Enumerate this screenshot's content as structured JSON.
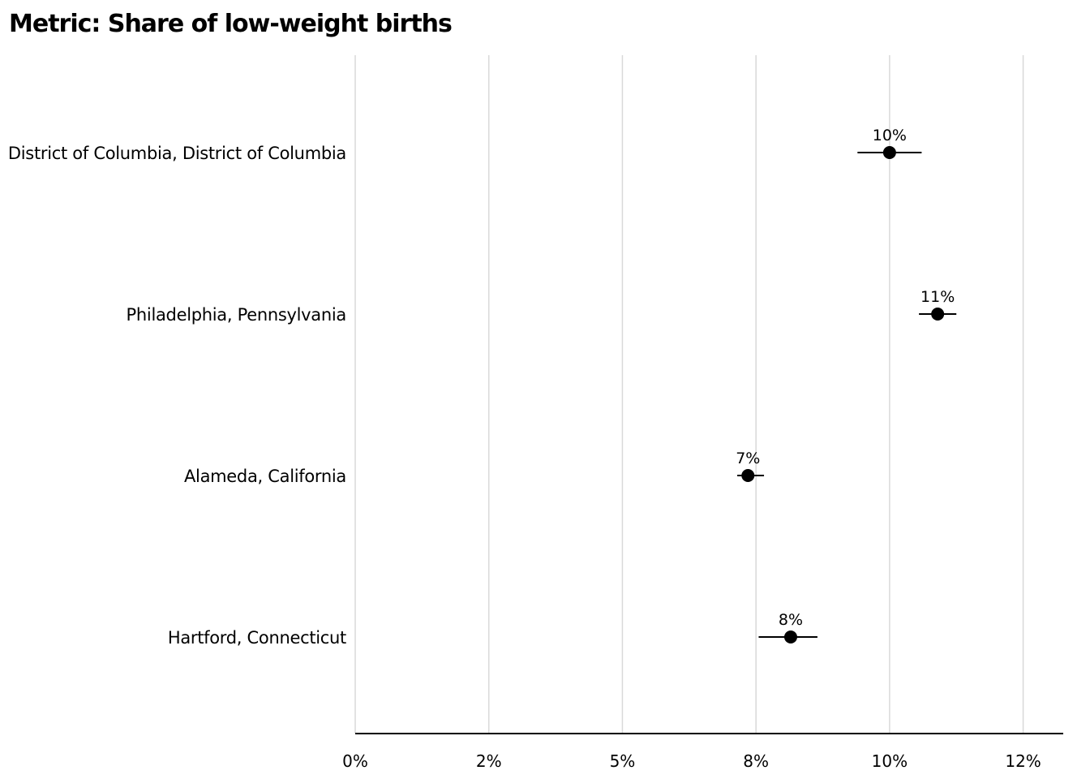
{
  "chart_data": {
    "type": "scatter",
    "title": "Metric: Share of low-weight births",
    "xlabel": "",
    "ylabel": "",
    "xlim": [
      0,
      0.1325
    ],
    "x_ticks": [
      0,
      0.025,
      0.05,
      0.075,
      0.1,
      0.125
    ],
    "x_tick_labels": [
      "0%",
      "2%",
      "5%",
      "8%",
      "10%",
      "12%"
    ],
    "grid": "vertical",
    "legend": "none",
    "categories": [
      "District of Columbia, District of Columbia",
      "Philadelphia, Pennsylvania",
      "Alameda, California",
      "Hartford, Connecticut"
    ],
    "series": [
      {
        "values": [
          0.1,
          0.109,
          0.0735,
          0.0815
        ],
        "lower": [
          0.094,
          0.1055,
          0.0715,
          0.0755
        ],
        "upper": [
          0.106,
          0.1125,
          0.0765,
          0.0865
        ],
        "labels": [
          "10%",
          "11%",
          "7%",
          "8%"
        ]
      }
    ],
    "colors": {
      "point": "#000000",
      "errorbar": "#000000",
      "grid": "#d9d9d9",
      "axis": "#000000"
    }
  }
}
